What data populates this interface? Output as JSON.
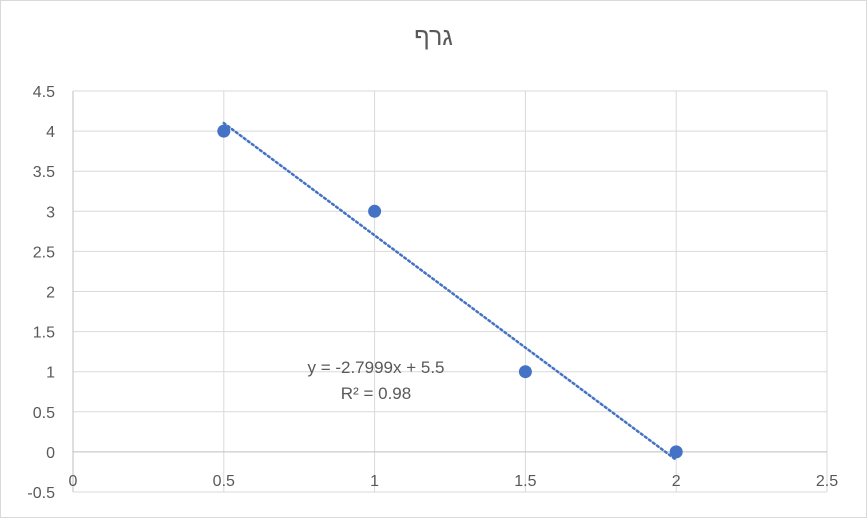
{
  "chart_data": {
    "type": "scatter",
    "title": "גרף",
    "xlabel": "",
    "ylabel": "",
    "xlim": [
      0,
      2.5
    ],
    "ylim": [
      -0.5,
      4.5
    ],
    "x_ticks": [
      "0",
      "0.5",
      "1",
      "1.5",
      "2",
      "2.5"
    ],
    "y_ticks": [
      "-0.5",
      "0",
      "0.5",
      "1",
      "1.5",
      "2",
      "2.5",
      "3",
      "3.5",
      "4",
      "4.5"
    ],
    "grid": true,
    "legend": "none",
    "points": [
      {
        "x": 0.5,
        "y": 4
      },
      {
        "x": 1.0,
        "y": 3
      },
      {
        "x": 1.5,
        "y": 1
      },
      {
        "x": 2.0,
        "y": 0
      }
    ],
    "trendline": {
      "type": "linear",
      "slope": -2.7999,
      "intercept": 5.5,
      "x_range": [
        0.5,
        2.0
      ],
      "style": "dotted",
      "equation_label": "y = -2.7999x + 5.5",
      "r2_label": "R² = 0.98"
    },
    "colors": {
      "marker": "#4472c4",
      "trendline": "#4472c4",
      "grid": "#d9d9d9",
      "text": "#595959"
    }
  }
}
